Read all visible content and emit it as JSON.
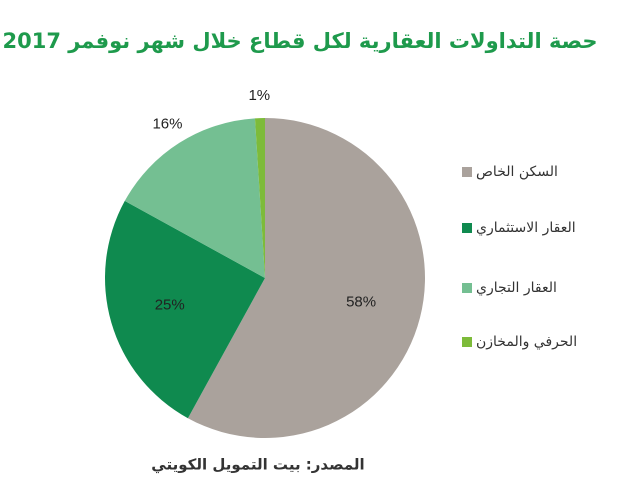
{
  "chart_data": {
    "type": "pie",
    "title": "حصة التداولات العقارية لكل قطاع خلال شهر نوفمر 2017",
    "source": "المصدر: بيت التمويل الكويتي",
    "categories": [
      "السكن الخاص",
      "العقار الاستثماري",
      "العقار التجاري",
      "الحرفي والمخازن"
    ],
    "values": [
      58,
      25,
      16,
      1
    ],
    "value_labels": [
      "58%",
      "25%",
      "16%",
      "1%"
    ],
    "colors": [
      "#aaa29c",
      "#0f8a4f",
      "#74bf92",
      "#7dbb3a"
    ],
    "legend": "right"
  }
}
